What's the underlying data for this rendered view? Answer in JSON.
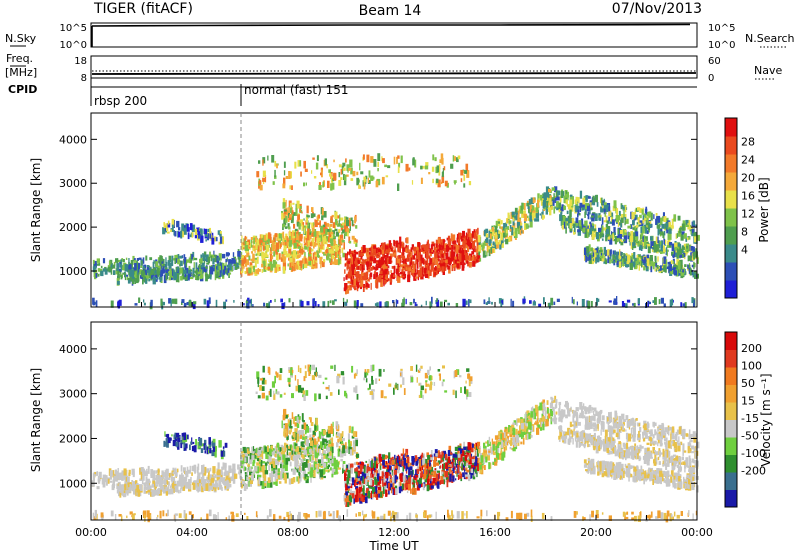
{
  "header": {
    "station": "TIGER (fitACF)",
    "beam": "Beam 14",
    "date": "07/Nov/2013"
  },
  "top_panels": {
    "nsky": {
      "label": "N.Sky",
      "ticks": [
        "10^5",
        "10^0"
      ]
    },
    "nsearch": {
      "label": "N.Search",
      "ticks": [
        "10^5",
        "10^0"
      ]
    },
    "freq": {
      "label_1": "Freq.",
      "label_2": "[MHz]",
      "ticks": [
        "18",
        "8"
      ]
    },
    "nave": {
      "label": "Nave",
      "ticks": [
        "60",
        "0"
      ]
    },
    "cpid": {
      "label": "CPID",
      "modes": [
        "rbsp 200",
        "normal (fast) 151"
      ]
    }
  },
  "colors": {
    "power": [
      "#1f1fd6",
      "#2d4fb6",
      "#3a8a8a",
      "#4f9e4f",
      "#7fc24a",
      "#e8e04a",
      "#f4a93a",
      "#f27a2a",
      "#ea4a1f",
      "#e01010"
    ],
    "velocity": [
      "#1a1aa8",
      "#3a6f8f",
      "#2f8f2f",
      "#6fcf3f",
      "#c8c8c8",
      "#e8c14a",
      "#f0a030",
      "#f07a20",
      "#e03a20",
      "#d80a0a"
    ]
  },
  "chart_data": [
    {
      "type": "heatmap",
      "title": "Power",
      "ylabel": "Slant Range [km]",
      "colorbar_label": "Power [dB]",
      "colorbar_ticks": [
        "28",
        "24",
        "20",
        "16",
        "12",
        "8",
        "4"
      ],
      "ylim": [
        180,
        4600
      ],
      "yticks": [
        "1000",
        "2000",
        "3000",
        "4000"
      ],
      "xlim": [
        "00:00",
        "24:00"
      ],
      "grid": true,
      "features": [
        {
          "t_start": 0.0,
          "t_end": 6.0,
          "range_km": 1150,
          "power_db": 10
        },
        {
          "t_start": 6.0,
          "t_end": 10.0,
          "range_km": 1300,
          "power_db": 20
        },
        {
          "t_start": 10.0,
          "t_end": 15.5,
          "range_km": 1300,
          "power_db": 27
        },
        {
          "t_start": 15.5,
          "t_end": 18.5,
          "range_km": 2500,
          "power_db": 14
        },
        {
          "t_start": 18.5,
          "t_end": 24.0,
          "range_km": 1800,
          "power_db": 10
        }
      ]
    },
    {
      "type": "heatmap",
      "title": "Velocity",
      "ylabel": "Slant Range [km]",
      "xlabel": "Time UT",
      "colorbar_label": "Velocity [m s⁻¹]",
      "colorbar_ticks": [
        "200",
        "100",
        "50",
        "15",
        "-15",
        "-50",
        "-100",
        "-200"
      ],
      "ylim": [
        180,
        4600
      ],
      "yticks": [
        "1000",
        "2000",
        "3000",
        "4000"
      ],
      "xticks": [
        "00:00",
        "04:00",
        "08:00",
        "12:00",
        "16:00",
        "20:00",
        "00:00"
      ],
      "grid": true,
      "features": [
        {
          "t_start": 0.0,
          "t_end": 9.5,
          "range_km": 1100,
          "velocity_ms": 0
        },
        {
          "t_start": 10.0,
          "t_end": 11.5,
          "range_km": 800,
          "velocity_ms": 200
        },
        {
          "t_start": 12.0,
          "t_end": 14.0,
          "range_km": 1400,
          "velocity_ms": -180
        },
        {
          "t_start": 16.0,
          "t_end": 24.0,
          "range_km": 1800,
          "velocity_ms": 0
        }
      ]
    }
  ]
}
